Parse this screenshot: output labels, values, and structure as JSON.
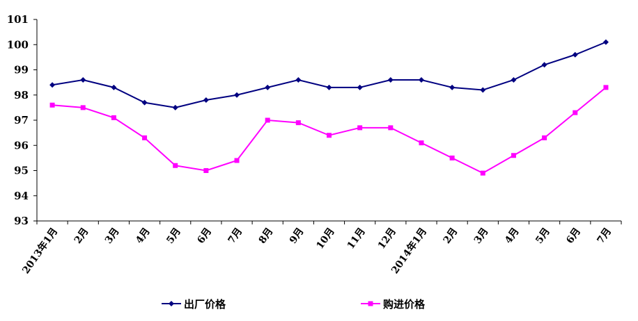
{
  "chart_data": {
    "type": "line",
    "title": "",
    "xlabel": "",
    "ylabel": "",
    "ylim": [
      93,
      101
    ],
    "yticks": [
      "93",
      "94",
      "95",
      "96",
      "97",
      "98",
      "99",
      "100",
      "101"
    ],
    "grid": false,
    "legend_position": "bottom",
    "categories": [
      "2013年1月",
      "2月",
      "3月",
      "4月",
      "5月",
      "6月",
      "7月",
      "8月",
      "9月",
      "10月",
      "11月",
      "12月",
      "2014年1月",
      "2月",
      "3月",
      "4月",
      "5月",
      "6月",
      "7月"
    ],
    "series": [
      {
        "name": "出厂价格",
        "color": "#000080",
        "marker": "diamond",
        "values": [
          98.4,
          98.6,
          98.3,
          97.7,
          97.5,
          97.8,
          98.0,
          98.3,
          98.6,
          98.3,
          98.3,
          98.6,
          98.6,
          98.3,
          98.2,
          98.6,
          99.2,
          99.6,
          100.1
        ]
      },
      {
        "name": "购进价格",
        "color": "#ff00ff",
        "marker": "square",
        "values": [
          97.6,
          97.5,
          97.1,
          96.3,
          95.2,
          95.0,
          95.4,
          97.0,
          96.9,
          96.4,
          96.7,
          96.7,
          96.1,
          95.5,
          94.9,
          95.6,
          96.3,
          97.3,
          98.3
        ]
      }
    ]
  }
}
